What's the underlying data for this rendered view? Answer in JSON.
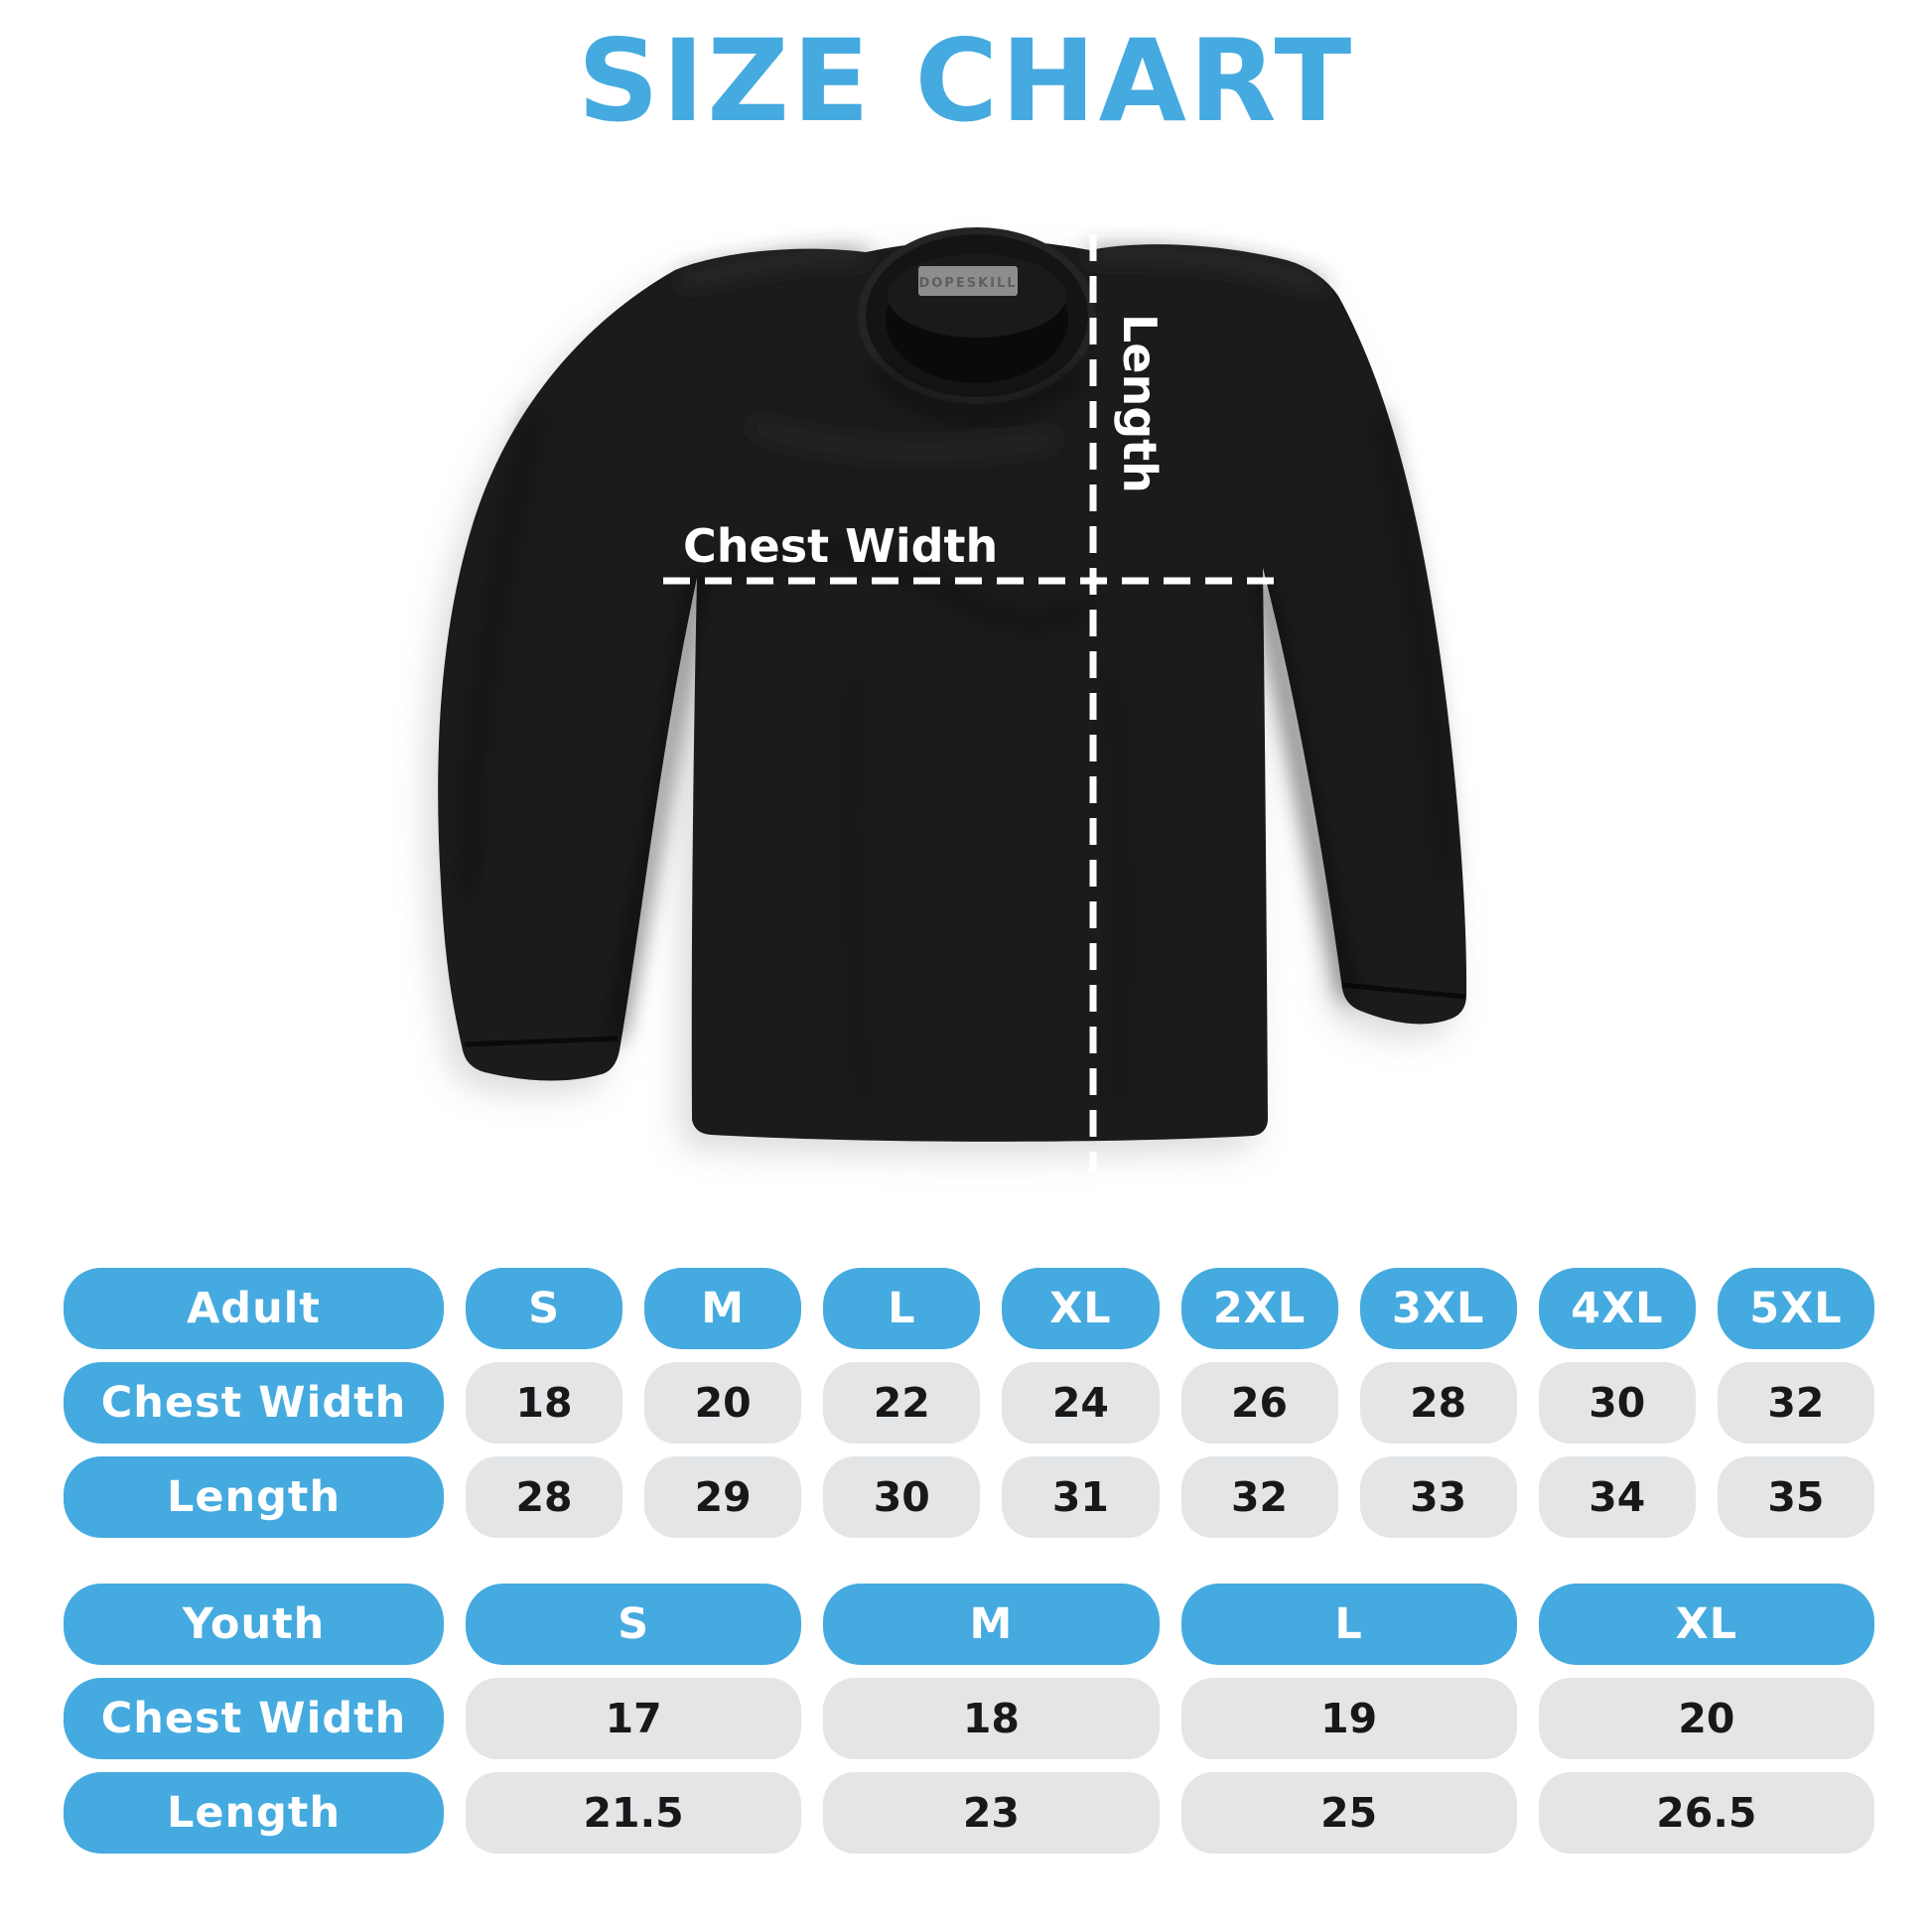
{
  "title": "SIZE CHART",
  "colors": {
    "accent_blue": "#45aadf",
    "pill_gray": "#e3e5e7",
    "shirt_black": "#1b1b1c",
    "text_dark": "#17181a",
    "white": "#ffffff"
  },
  "diagram": {
    "shirt_tag": "DOPESKILL",
    "chest_width_label": "Chest Width",
    "length_label": "Length"
  },
  "chart_data": [
    {
      "type": "table",
      "title": "Adult",
      "columns": [
        "S",
        "M",
        "L",
        "XL",
        "2XL",
        "3XL",
        "4XL",
        "5XL"
      ],
      "rows": [
        {
          "label": "Chest Width",
          "values": [
            "18",
            "20",
            "22",
            "24",
            "26",
            "28",
            "30",
            "32"
          ]
        },
        {
          "label": "Length",
          "values": [
            "28",
            "29",
            "30",
            "31",
            "32",
            "33",
            "34",
            "35"
          ]
        }
      ]
    },
    {
      "type": "table",
      "title": "Youth",
      "columns": [
        "S",
        "M",
        "L",
        "XL"
      ],
      "rows": [
        {
          "label": "Chest Width",
          "values": [
            "17",
            "18",
            "19",
            "20"
          ]
        },
        {
          "label": "Length",
          "values": [
            "21.5",
            "23",
            "25",
            "26.5"
          ]
        }
      ]
    }
  ]
}
